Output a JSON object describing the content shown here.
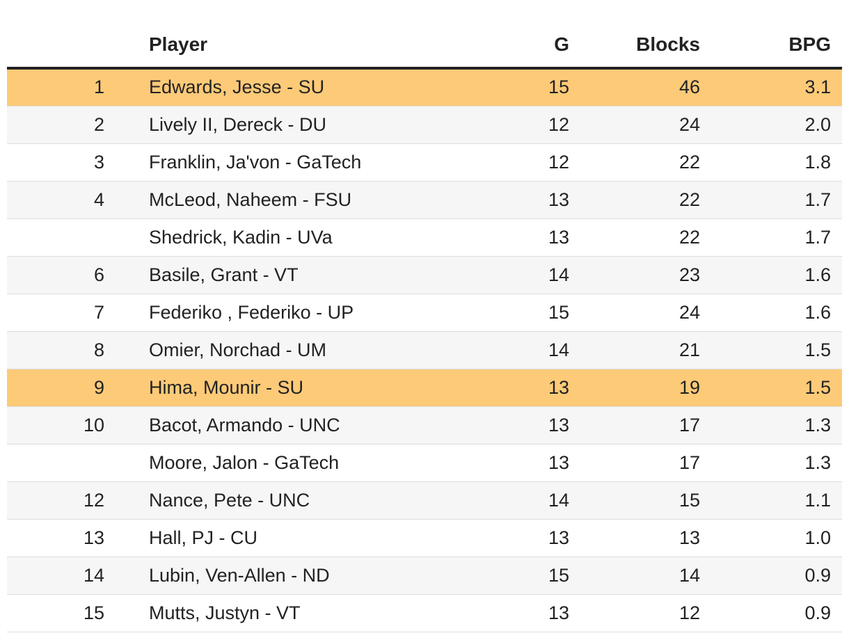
{
  "table": {
    "columns": {
      "rank": "",
      "player": "Player",
      "g": "G",
      "blocks": "Blocks",
      "bpg": "BPG"
    },
    "highlight_color": "#fdca78",
    "rows": [
      {
        "rank": "1",
        "player": "Edwards, Jesse - SU",
        "g": "15",
        "blocks": "46",
        "bpg": "3.1",
        "highlight": true
      },
      {
        "rank": "2",
        "player": "Lively II, Dereck - DU",
        "g": "12",
        "blocks": "24",
        "bpg": "2.0",
        "highlight": false
      },
      {
        "rank": "3",
        "player": "Franklin, Ja'von - GaTech",
        "g": "12",
        "blocks": "22",
        "bpg": "1.8",
        "highlight": false
      },
      {
        "rank": "4",
        "player": "McLeod, Naheem - FSU",
        "g": "13",
        "blocks": "22",
        "bpg": "1.7",
        "highlight": false
      },
      {
        "rank": "",
        "player": "Shedrick, Kadin - UVa",
        "g": "13",
        "blocks": "22",
        "bpg": "1.7",
        "highlight": false
      },
      {
        "rank": "6",
        "player": "Basile, Grant - VT",
        "g": "14",
        "blocks": "23",
        "bpg": "1.6",
        "highlight": false
      },
      {
        "rank": "7",
        "player": "Federiko , Federiko - UP",
        "g": "15",
        "blocks": "24",
        "bpg": "1.6",
        "highlight": false
      },
      {
        "rank": "8",
        "player": "Omier, Norchad - UM",
        "g": "14",
        "blocks": "21",
        "bpg": "1.5",
        "highlight": false
      },
      {
        "rank": "9",
        "player": "Hima, Mounir - SU",
        "g": "13",
        "blocks": "19",
        "bpg": "1.5",
        "highlight": true
      },
      {
        "rank": "10",
        "player": "Bacot, Armando - UNC",
        "g": "13",
        "blocks": "17",
        "bpg": "1.3",
        "highlight": false
      },
      {
        "rank": "",
        "player": "Moore, Jalon - GaTech",
        "g": "13",
        "blocks": "17",
        "bpg": "1.3",
        "highlight": false
      },
      {
        "rank": "12",
        "player": "Nance, Pete - UNC",
        "g": "14",
        "blocks": "15",
        "bpg": "1.1",
        "highlight": false
      },
      {
        "rank": "13",
        "player": "Hall, PJ - CU",
        "g": "13",
        "blocks": "13",
        "bpg": "1.0",
        "highlight": false
      },
      {
        "rank": "14",
        "player": "Lubin, Ven-Allen - ND",
        "g": "15",
        "blocks": "14",
        "bpg": "0.9",
        "highlight": false
      },
      {
        "rank": "15",
        "player": "Mutts, Justyn - VT",
        "g": "13",
        "blocks": "12",
        "bpg": "0.9",
        "highlight": false
      }
    ]
  }
}
